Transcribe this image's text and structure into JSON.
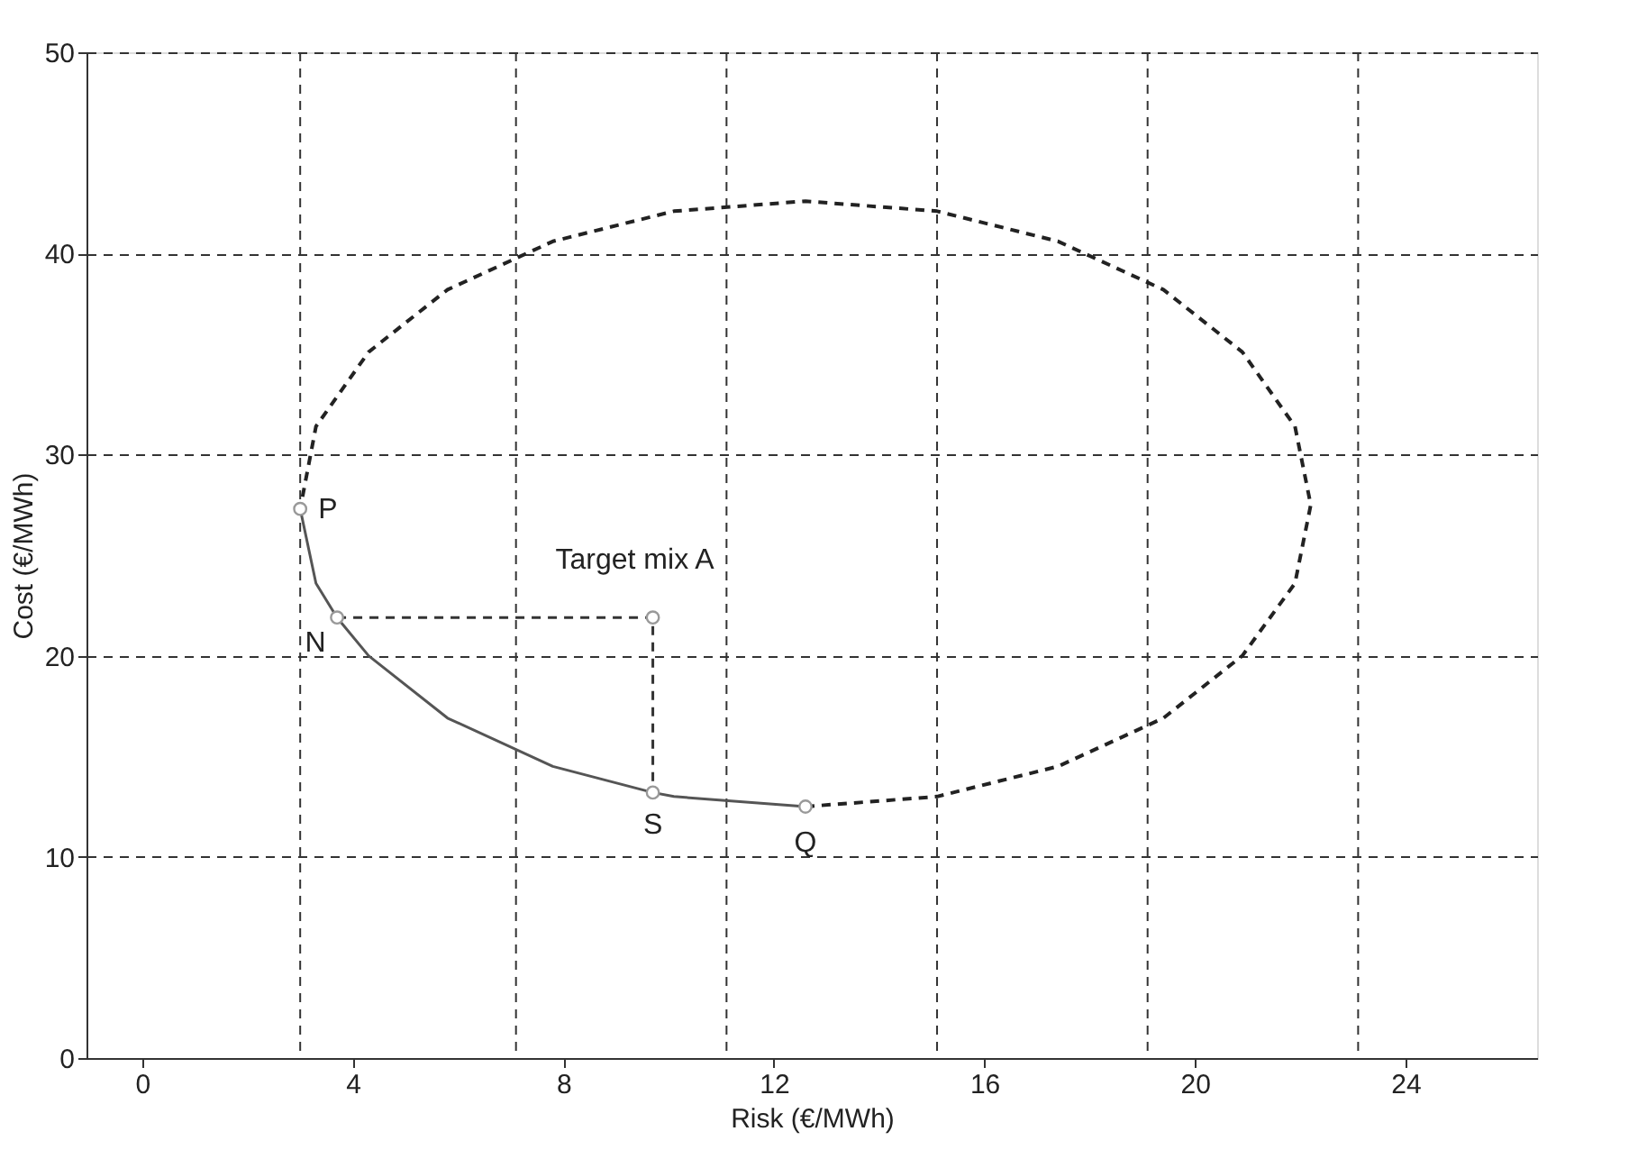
{
  "chart_data": {
    "type": "line",
    "xlabel": "Risk (€/MWh)",
    "ylabel": "Cost (€/MWh)",
    "xlim": [
      -1.06,
      26.5
    ],
    "ylim": [
      0,
      50
    ],
    "xticks": [
      0,
      4,
      8,
      12,
      16,
      20,
      24
    ],
    "yticks": [
      0,
      10,
      20,
      30,
      40,
      50
    ],
    "grid": "y",
    "series": [
      {
        "color": "#555555",
        "line_style": "solid",
        "x": [
          3.0,
          3.3,
          3.7,
          4.3,
          5.8,
          7.8,
          9.7,
          10.1,
          12.6
        ],
        "values": [
          27.3,
          23.6,
          21.9,
          20.0,
          16.9,
          14.5,
          13.2,
          13.0,
          12.5
        ]
      },
      {
        "color": "#222222",
        "line_style": "dashed",
        "x": [
          12.6,
          15.1,
          17.4,
          19.4,
          20.9,
          21.9,
          22.2,
          21.9,
          20.9,
          19.4,
          17.4,
          15.1,
          12.6,
          10.1,
          7.8,
          5.8,
          4.3,
          3.3,
          3.0
        ],
        "values": [
          12.5,
          13.0,
          14.5,
          16.9,
          20.0,
          23.6,
          27.5,
          31.4,
          35.1,
          38.2,
          40.6,
          42.1,
          42.6,
          42.1,
          40.6,
          38.2,
          35.1,
          31.4,
          27.3
        ]
      },
      {
        "color": "#333333",
        "line_style": "dashed",
        "x": [
          3.7,
          9.7,
          9.7
        ],
        "values": [
          21.9,
          21.9,
          13.2
        ]
      },
      {
        "type": "scatter",
        "color": "#999999",
        "marker": "circle",
        "x": [
          3.0,
          3.7,
          9.7,
          12.6,
          9.7
        ],
        "values": [
          27.3,
          21.9,
          13.2,
          12.5,
          21.9
        ]
      }
    ],
    "ref_lines": [
      {
        "axis": "x",
        "value": 3.0,
        "label": null,
        "color": "#333333",
        "line_style": "dashed"
      },
      {
        "axis": "x",
        "value": 7.1,
        "label": null,
        "color": "#333333",
        "line_style": "dashed"
      },
      {
        "axis": "x",
        "value": 11.1,
        "label": null,
        "color": "#333333",
        "line_style": "dashed"
      },
      {
        "axis": "x",
        "value": 15.1,
        "label": null,
        "color": "#333333",
        "line_style": "dashed"
      },
      {
        "axis": "x",
        "value": 19.1,
        "label": null,
        "color": "#333333",
        "line_style": "dashed"
      },
      {
        "axis": "x",
        "value": 23.1,
        "label": null,
        "color": "#333333",
        "line_style": "dashed"
      }
    ],
    "annotations": [
      {
        "text": "P",
        "x": 3.0,
        "y": 27.3
      },
      {
        "text": "N",
        "x": 3.7,
        "y": 21.9
      },
      {
        "text": "S",
        "x": 9.7,
        "y": 13.2
      },
      {
        "text": "Q",
        "x": 12.6,
        "y": 12.5
      },
      {
        "text": "Target  mix A",
        "x": 9.7,
        "y": 21.9
      }
    ]
  }
}
